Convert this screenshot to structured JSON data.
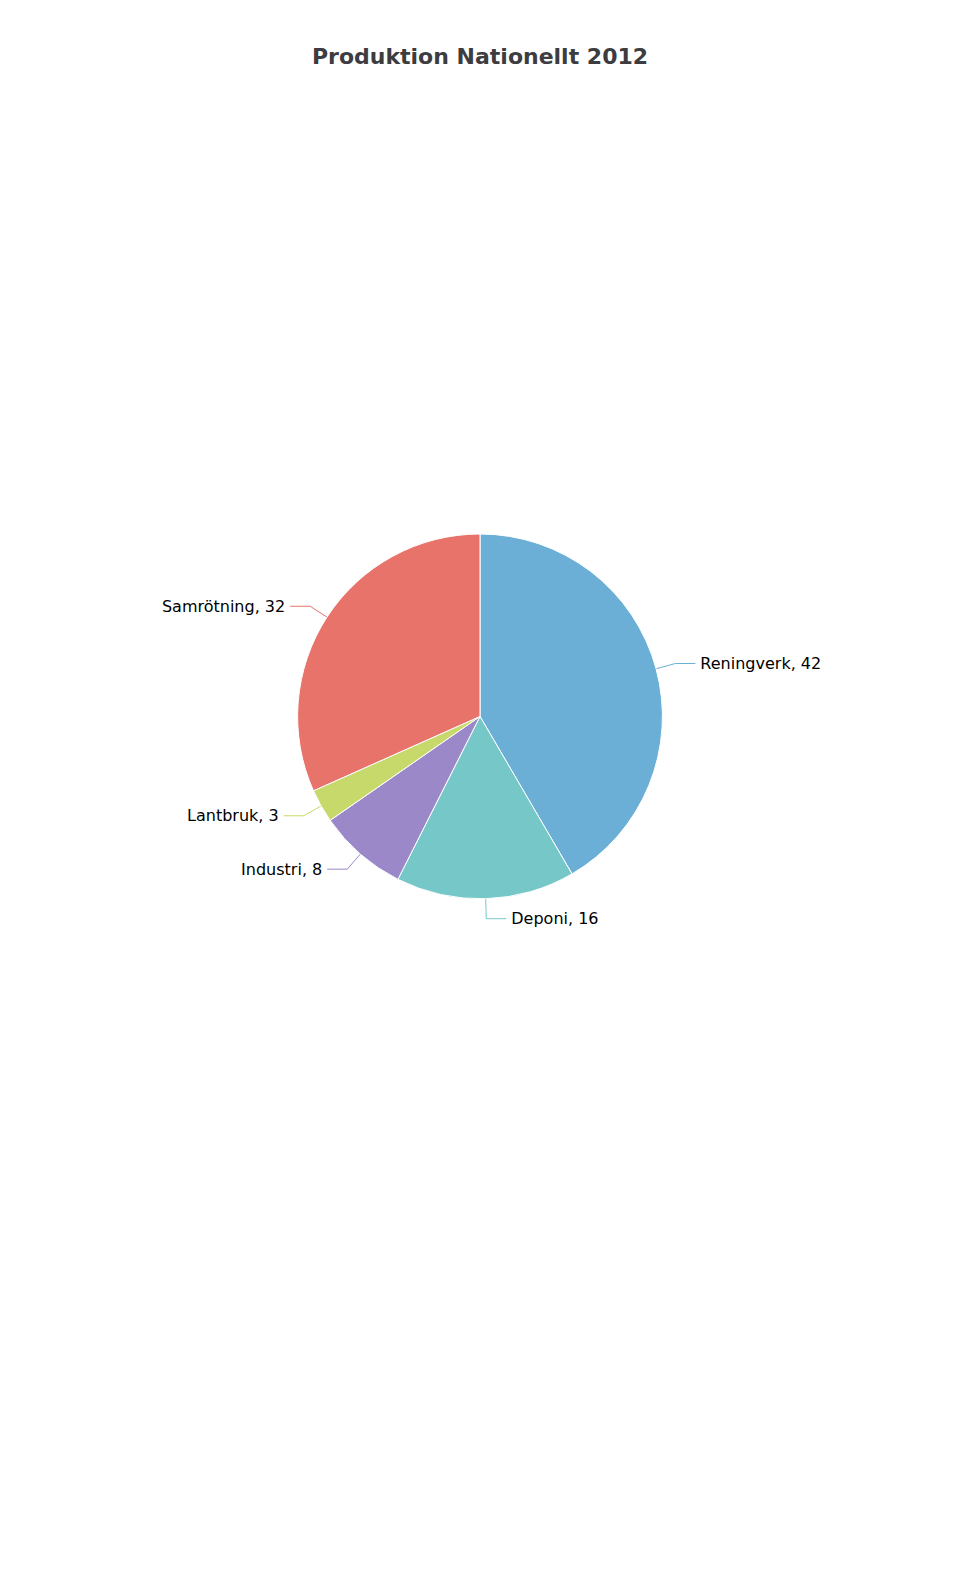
{
  "chart_data": {
    "type": "pie",
    "title": "Produktion Nationellt 2012",
    "categories": [
      "Reningverk, 42",
      "Deponi, 16",
      "Industri, 8",
      "Lantbruk, 3",
      "Samrötning, 32"
    ],
    "values": [
      42,
      16,
      8,
      3,
      32
    ],
    "colors": [
      "#6baed6",
      "#76c8c8",
      "#9b88c9",
      "#c8d96b",
      "#e8736a"
    ]
  }
}
